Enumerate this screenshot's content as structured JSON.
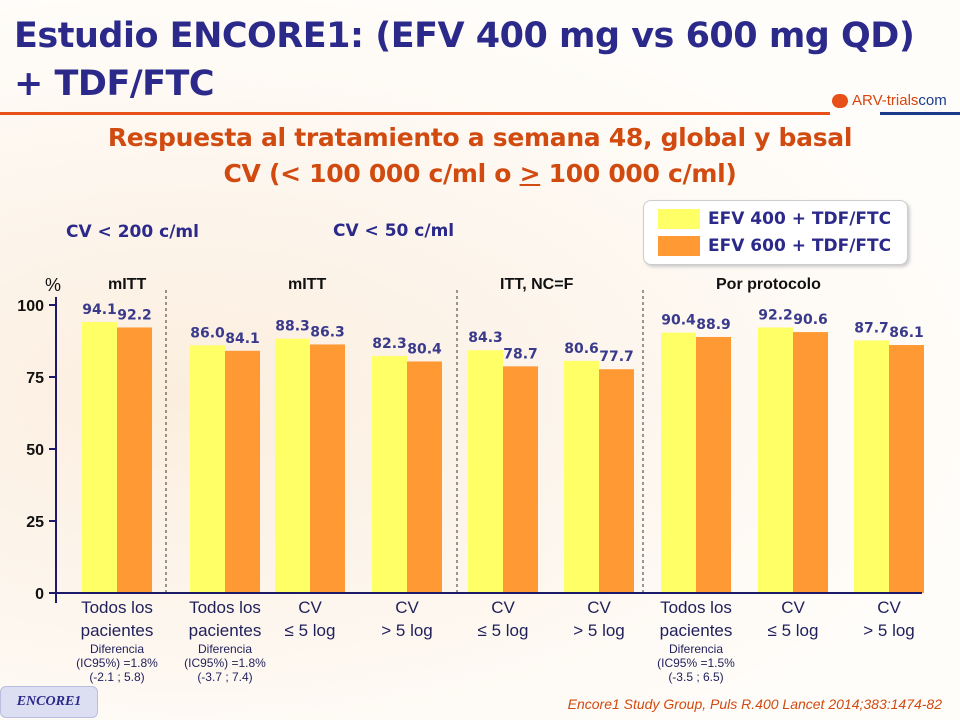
{
  "title_line1": "Estudio ENCORE1: (EFV 400 mg vs 600 mg QD)",
  "title_line2": "+ TDF/FTC",
  "logo_text": "ARV-trials",
  "logo_suffix": "com",
  "subtitle_line1": "Respuesta al tratamiento a semana 48, global y basal",
  "subtitle_line2_a": "CV (< 100 000 c/ml o ",
  "subtitle_line2_b": ">",
  "subtitle_line2_c": " 100 000 c/ml)",
  "threshold_labels": [
    "CV < 200 c/ml",
    "CV < 50 c/ml"
  ],
  "group_headers": [
    "mITT",
    "mITT",
    "ITT, NC=F",
    "Por protocolo"
  ],
  "footer_badge": "ENCORE1",
  "reference": "Encore1 Study Group, Puls R.400 Lancet 2014;383:1474-82",
  "chart_data": {
    "type": "bar",
    "ylabel": "%",
    "ylim": [
      0,
      100
    ],
    "yticks": [
      0,
      25,
      50,
      75,
      100
    ],
    "categories": [
      {
        "l1": "Todos los",
        "l2": "pacientes",
        "diff": [
          "Diferencia",
          "(IC95%) =1.8%",
          "(-2.1 ; 5.8)"
        ]
      },
      {
        "l1": "Todos los",
        "l2": "pacientes",
        "diff": [
          "Diferencia",
          "(IC95%) =1.8%",
          "(-3.7 ; 7.4)"
        ]
      },
      {
        "l1": "CV",
        "l2": "≤ 5 log"
      },
      {
        "l1": "CV",
        "l2": "> 5 log"
      },
      {
        "l1": "CV",
        "l2": "≤ 5 log"
      },
      {
        "l1": "CV",
        "l2": "> 5 log"
      },
      {
        "l1": "Todos los",
        "l2": "pacientes",
        "diff": [
          "Diferencia",
          "(IC95% =1.5%",
          "(-3.5 ; 6.5)"
        ]
      },
      {
        "l1": "CV",
        "l2": "≤ 5 log"
      },
      {
        "l1": "CV",
        "l2": "> 5 log"
      }
    ],
    "series": [
      {
        "name": "EFV 400 + TDF/FTC",
        "color": "#ffff66",
        "values": [
          94.1,
          86.0,
          88.3,
          82.3,
          84.3,
          80.6,
          90.4,
          92.2,
          87.7
        ]
      },
      {
        "name": "EFV 600 + TDF/FTC",
        "color": "#ff9933",
        "values": [
          92.2,
          84.1,
          86.3,
          80.4,
          78.7,
          77.7,
          88.9,
          90.6,
          86.1
        ]
      }
    ],
    "legend_position": "top-right"
  }
}
